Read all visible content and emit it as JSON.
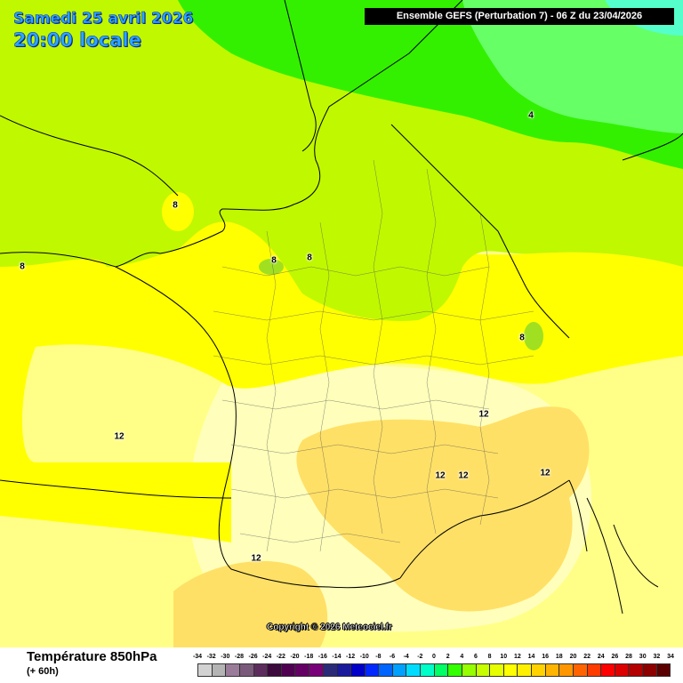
{
  "header": {
    "date_line1": "Samedi 25 avril 2026",
    "date_line2": "20:00 locale",
    "model_run": "Ensemble GEFS  (Perturbation 7)  -  06 Z du 23/04/2026"
  },
  "map": {
    "region": "France",
    "contour_labels": [
      "4",
      "8",
      "8",
      "8",
      "8",
      "8",
      "12",
      "12",
      "12",
      "12",
      "12",
      "12"
    ],
    "colors": {
      "sea_warm_yellow": "#ffff66",
      "lime": "#c0f800",
      "green": "#33f000",
      "mint": "#66ff66",
      "cyan": "#33ffcc",
      "yellow": "#ffff00",
      "pale_yellow": "#ffffaa",
      "cream": "#ffffcc",
      "light_orange": "#ffe066",
      "coast": "#000000"
    },
    "copyright": "Copyright © 2026 Meteociel.fr"
  },
  "footer": {
    "variable": "Température 850hPa",
    "lead_time": "(+ 60h)",
    "scale": {
      "ticks": [
        "-34",
        "-32",
        "-30",
        "-28",
        "-26",
        "-24",
        "-22",
        "-20",
        "-18",
        "-16",
        "-14",
        "-12",
        "-10",
        "-8",
        "-6",
        "-4",
        "-2",
        "0",
        "2",
        "4",
        "6",
        "8",
        "10",
        "12",
        "14",
        "16",
        "18",
        "20",
        "22",
        "24",
        "26",
        "28",
        "30",
        "32",
        "34"
      ],
      "colors": [
        "#d2d2d2",
        "#b4b4b4",
        "#9a7c9a",
        "#7a5a7a",
        "#5c2c5c",
        "#3c0a3c",
        "#500050",
        "#640064",
        "#780078",
        "#2a2a78",
        "#1a1a9c",
        "#0000c8",
        "#0028ff",
        "#0064ff",
        "#00a0ff",
        "#00dcff",
        "#00ffc8",
        "#00ff64",
        "#32ff00",
        "#96ff00",
        "#c8ff00",
        "#e6ff00",
        "#ffff00",
        "#fff000",
        "#ffd200",
        "#ffb400",
        "#ff9600",
        "#ff6400",
        "#ff3c00",
        "#ff0000",
        "#dc0000",
        "#b40000",
        "#8c0000",
        "#5a0000"
      ]
    }
  }
}
